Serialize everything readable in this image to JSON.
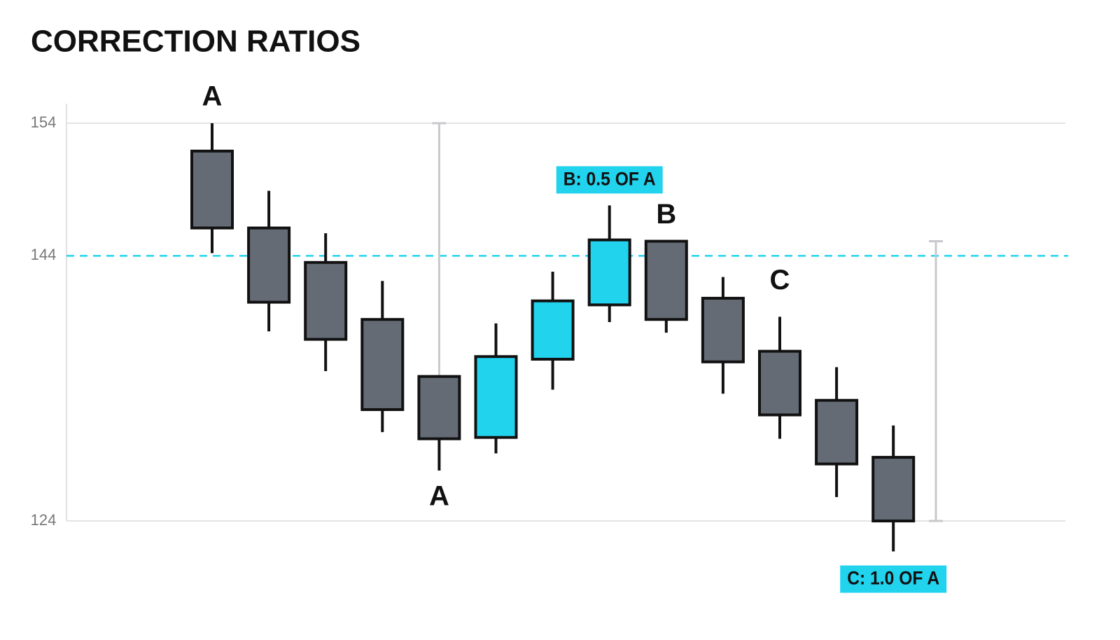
{
  "chart_data": {
    "type": "candlestick",
    "title": "CORRECTION RATIOS",
    "ylim": [
      124,
      154
    ],
    "yticks": [
      124,
      144,
      154
    ],
    "grid": true,
    "reference_line": 144,
    "reference_color": "#22d3ee",
    "up_color": "#22d3ee",
    "down_color": "#646b75",
    "candles": [
      {
        "open": 151.9,
        "high": 154.0,
        "low": 144.2,
        "close": 146.1,
        "top_label": "A"
      },
      {
        "open": 146.1,
        "high": 148.9,
        "low": 138.3,
        "close": 140.5
      },
      {
        "open": 143.5,
        "high": 145.7,
        "low": 135.3,
        "close": 137.7
      },
      {
        "open": 139.2,
        "high": 142.1,
        "low": 130.7,
        "close": 132.4
      },
      {
        "open": 134.9,
        "high": 134.9,
        "low": 127.8,
        "close": 130.2,
        "bottom_label": "A",
        "range": [
          154,
          134.9
        ]
      },
      {
        "open": 130.3,
        "high": 138.9,
        "low": 129.1,
        "close": 136.4
      },
      {
        "open": 136.2,
        "high": 142.8,
        "low": 133.9,
        "close": 140.6
      },
      {
        "open": 140.3,
        "high": 147.8,
        "low": 139.0,
        "close": 145.2,
        "callout": "B: 0.5 OF A"
      },
      {
        "open": 145.1,
        "high": 145.1,
        "low": 138.2,
        "close": 139.2,
        "top_label": "B"
      },
      {
        "open": 140.8,
        "high": 142.4,
        "low": 133.6,
        "close": 136.0
      },
      {
        "open": 136.8,
        "high": 139.4,
        "low": 130.2,
        "close": 132.0,
        "top_label": "C"
      },
      {
        "open": 133.1,
        "high": 135.6,
        "low": 125.8,
        "close": 128.3
      },
      {
        "open": 128.8,
        "high": 131.2,
        "low": 121.7,
        "close": 124.0,
        "bottom_callout": "C: 1.0 OF A",
        "range": [
          145.1,
          124
        ]
      }
    ]
  }
}
